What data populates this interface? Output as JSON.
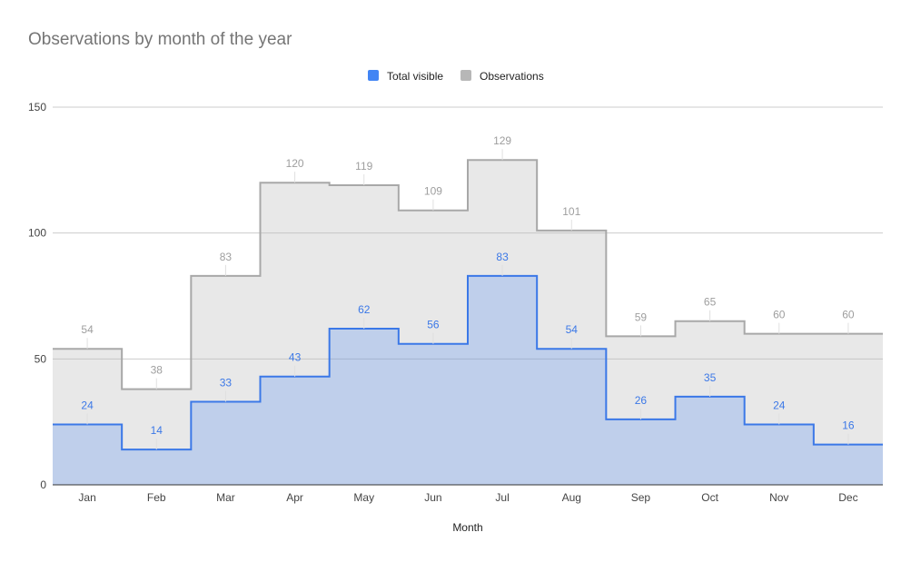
{
  "chart_data": {
    "type": "area",
    "title": "Observations by month of the year",
    "xlabel": "Month",
    "ylabel": "",
    "categories": [
      "Jan",
      "Feb",
      "Mar",
      "Apr",
      "May",
      "Jun",
      "Jul",
      "Aug",
      "Sep",
      "Oct",
      "Nov",
      "Dec"
    ],
    "series": [
      {
        "name": "Total visible",
        "color": "#4285f4",
        "values": [
          24,
          14,
          33,
          43,
          62,
          56,
          83,
          54,
          26,
          35,
          24,
          16
        ]
      },
      {
        "name": "Observations",
        "color": "#b7b7b7",
        "values": [
          54,
          38,
          83,
          120,
          119,
          109,
          129,
          101,
          59,
          65,
          60,
          60
        ]
      }
    ],
    "ylim": [
      0,
      150
    ],
    "yticks": [
      "0",
      "50",
      "100",
      "150"
    ],
    "stepped": true,
    "grid": true,
    "data_labels": true,
    "legend_position": "top"
  }
}
